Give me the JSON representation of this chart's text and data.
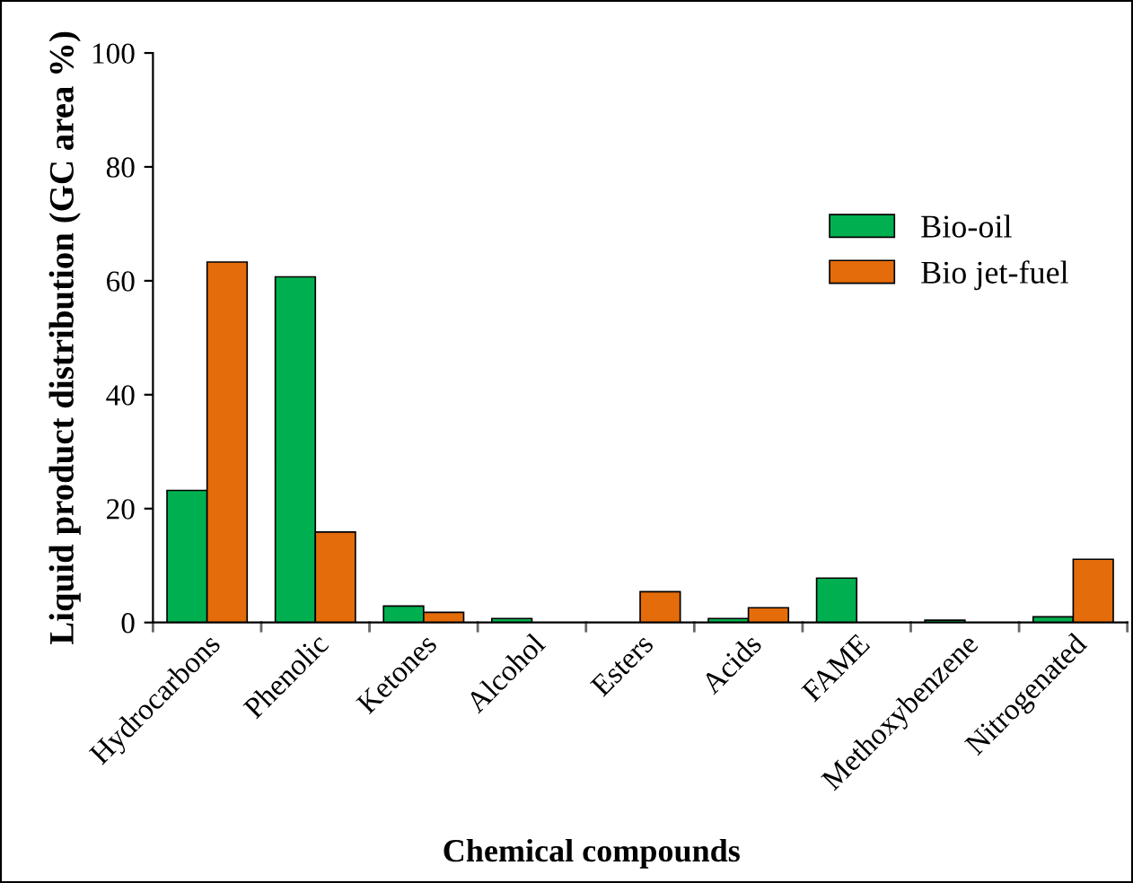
{
  "chart_data": {
    "type": "bar",
    "xlabel": "Chemical compounds",
    "ylabel": "Liquid product distribution (GC area %)",
    "categories": [
      "Hydrocarbons",
      "Phenolic",
      "Ketones",
      "Alcohol",
      "Esters",
      "Acids",
      "FAME",
      "Methoxybenzene",
      "Nitrogenated"
    ],
    "series": [
      {
        "name": "Bio-oil",
        "color": "#00b050",
        "values": [
          23.2,
          60.7,
          2.9,
          0.7,
          0,
          0.7,
          7.8,
          0.4,
          1.0
        ]
      },
      {
        "name": "Bio jet-fuel",
        "color": "#e46c0a",
        "values": [
          63.3,
          15.9,
          1.8,
          0,
          5.4,
          2.6,
          0,
          0,
          11.1
        ]
      }
    ],
    "ylim": [
      0,
      100
    ],
    "yticks": [
      0,
      20,
      40,
      60,
      80,
      100
    ],
    "grid": false,
    "legend": "right"
  }
}
